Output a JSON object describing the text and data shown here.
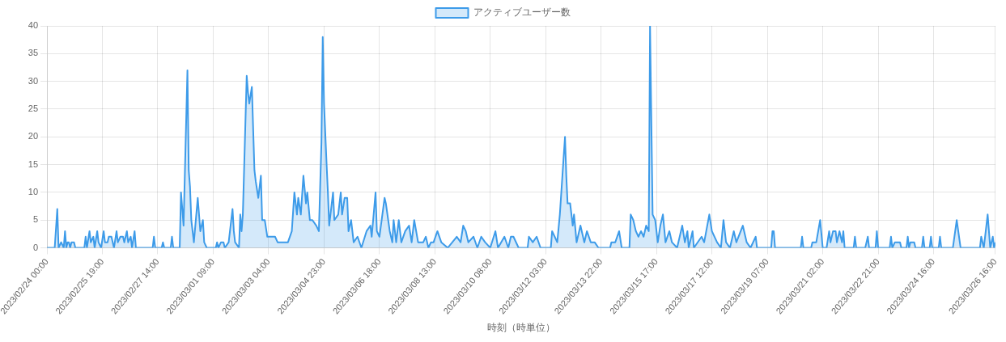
{
  "chart_data": {
    "type": "area",
    "xlabel": "時刻（時単位）",
    "legend": "top",
    "grid": true,
    "marker": "none",
    "line_style": "solid",
    "ylim": [
      0,
      40
    ],
    "yticks": [
      0,
      5,
      10,
      15,
      20,
      25,
      30,
      35,
      40
    ],
    "xlim": [
      "2023-02-24T00:00",
      "2023-03-26T16:00"
    ],
    "xticks": [
      {
        "value": "2023-02-24T00:00",
        "label": "2023/02/24 00:00"
      },
      {
        "value": "2023-02-25T19:00",
        "label": "2023/02/25 19:00"
      },
      {
        "value": "2023-02-27T14:00",
        "label": "2023/02/27 14:00"
      },
      {
        "value": "2023-03-01T09:00",
        "label": "2023/03/01 09:00"
      },
      {
        "value": "2023-03-03T04:00",
        "label": "2023/03/03 04:00"
      },
      {
        "value": "2023-03-04T23:00",
        "label": "2023/03/04 23:00"
      },
      {
        "value": "2023-03-06T18:00",
        "label": "2023/03/06 18:00"
      },
      {
        "value": "2023-03-08T13:00",
        "label": "2023/03/08 13:00"
      },
      {
        "value": "2023-03-10T08:00",
        "label": "2023/03/10 08:00"
      },
      {
        "value": "2023-03-12T03:00",
        "label": "2023/03/12 03:00"
      },
      {
        "value": "2023-03-13T22:00",
        "label": "2023/03/13 22:00"
      },
      {
        "value": "2023-03-15T17:00",
        "label": "2023/03/15 17:00"
      },
      {
        "value": "2023-03-17T12:00",
        "label": "2023/03/17 12:00"
      },
      {
        "value": "2023-03-19T07:00",
        "label": "2023/03/19 07:00"
      },
      {
        "value": "2023-03-21T02:00",
        "label": "2023/03/21 02:00"
      },
      {
        "value": "2023-03-22T21:00",
        "label": "2023/03/22 21:00"
      },
      {
        "value": "2023-03-24T16:00",
        "label": "2023/03/24 16:00"
      },
      {
        "value": "2023-03-26T16:00",
        "label": "2023/03/26 16:00"
      }
    ],
    "series": [
      {
        "name": "アクティブユーザー数",
        "color": "#3d9be9",
        "x": [
          "2023-02-24T00:00",
          "2023-02-24T06:00",
          "2023-02-24T08:00",
          "2023-02-24T09:00",
          "2023-02-24T11:00",
          "2023-02-24T13:00",
          "2023-02-24T14:00",
          "2023-02-24T15:00",
          "2023-02-24T16:00",
          "2023-02-24T17:00",
          "2023-02-24T18:00",
          "2023-02-24T19:00",
          "2023-02-24T21:00",
          "2023-02-24T22:00",
          "2023-02-25T05:00",
          "2023-02-25T06:00",
          "2023-02-25T07:00",
          "2023-02-25T09:00",
          "2023-02-25T10:00",
          "2023-02-25T12:00",
          "2023-02-25T13:00",
          "2023-02-25T15:00",
          "2023-02-25T16:00",
          "2023-02-25T18:00",
          "2023-02-25T20:00",
          "2023-02-25T21:00",
          "2023-02-25T23:00",
          "2023-02-26T00:00",
          "2023-02-26T02:00",
          "2023-02-26T04:00",
          "2023-02-26T06:00",
          "2023-02-26T07:00",
          "2023-02-26T09:00",
          "2023-02-26T11:00",
          "2023-02-26T12:00",
          "2023-02-26T14:00",
          "2023-02-26T15:00",
          "2023-02-26T17:00",
          "2023-02-26T18:00",
          "2023-02-26T20:00",
          "2023-02-26T21:00",
          "2023-02-26T23:00",
          "2023-02-27T10:00",
          "2023-02-27T11:00",
          "2023-02-27T12:00",
          "2023-02-27T17:00",
          "2023-02-27T18:00",
          "2023-02-27T19:00",
          "2023-02-28T00:00",
          "2023-02-28T01:00",
          "2023-02-28T02:00",
          "2023-02-28T07:00",
          "2023-02-28T08:00",
          "2023-02-28T10:00",
          "2023-02-28T13:00",
          "2023-02-28T14:00",
          "2023-02-28T15:00",
          "2023-02-28T16:00",
          "2023-02-28T17:00",
          "2023-02-28T18:00",
          "2023-02-28T21:00",
          "2023-02-28T23:00",
          "2023-03-01T01:00",
          "2023-03-01T02:00",
          "2023-03-01T04:00",
          "2023-03-01T11:00",
          "2023-03-01T12:00",
          "2023-03-01T13:00",
          "2023-03-01T15:00",
          "2023-03-01T17:00",
          "2023-03-01T18:00",
          "2023-03-01T21:00",
          "2023-03-01T22:00",
          "2023-03-02T00:00",
          "2023-03-02T01:00",
          "2023-03-02T02:00",
          "2023-03-02T05:00",
          "2023-03-02T06:00",
          "2023-03-02T07:00",
          "2023-03-02T08:00",
          "2023-03-02T11:00",
          "2023-03-02T12:00",
          "2023-03-02T13:00",
          "2023-03-02T15:00",
          "2023-03-02T17:00",
          "2023-03-02T18:00",
          "2023-03-02T20:00",
          "2023-03-02T22:00",
          "2023-03-02T23:00",
          "2023-03-03T01:00",
          "2023-03-03T03:00",
          "2023-03-03T09:00",
          "2023-03-03T11:00",
          "2023-03-03T17:00",
          "2023-03-03T19:00",
          "2023-03-03T22:00",
          "2023-03-04T00:00",
          "2023-03-04T02:00",
          "2023-03-04T03:00",
          "2023-03-04T05:00",
          "2023-03-04T07:00",
          "2023-03-04T09:00",
          "2023-03-04T10:00",
          "2023-03-04T12:00",
          "2023-03-04T14:00",
          "2023-03-04T17:00",
          "2023-03-04T19:00",
          "2023-03-04T21:00",
          "2023-03-04T22:00",
          "2023-03-04T23:00",
          "2023-03-05T01:00",
          "2023-03-05T02:00",
          "2023-03-05T03:00",
          "2023-03-05T06:00",
          "2023-03-05T07:00",
          "2023-03-05T10:00",
          "2023-03-05T12:00",
          "2023-03-05T13:00",
          "2023-03-05T15:00",
          "2023-03-05T17:00",
          "2023-03-05T18:00",
          "2023-03-05T20:00",
          "2023-03-05T22:00",
          "2023-03-06T01:00",
          "2023-03-06T04:00",
          "2023-03-06T08:00",
          "2023-03-06T11:00",
          "2023-03-06T12:00",
          "2023-03-06T15:00",
          "2023-03-06T16:00",
          "2023-03-06T18:00",
          "2023-03-06T22:00",
          "2023-03-06T23:00",
          "2023-03-07T02:00",
          "2023-03-07T04:00",
          "2023-03-07T05:00",
          "2023-03-07T07:00",
          "2023-03-07T09:00",
          "2023-03-07T11:00",
          "2023-03-07T14:00",
          "2023-03-07T17:00",
          "2023-03-07T19:00",
          "2023-03-07T21:00",
          "2023-03-08T00:00",
          "2023-03-08T04:00",
          "2023-03-08T06:00",
          "2023-03-08T08:00",
          "2023-03-08T10:00",
          "2023-03-08T12:00",
          "2023-03-08T15:00",
          "2023-03-08T18:00",
          "2023-03-08T23:00",
          "2023-03-09T06:00",
          "2023-03-09T09:00",
          "2023-03-09T11:00",
          "2023-03-09T13:00",
          "2023-03-09T15:00",
          "2023-03-09T19:00",
          "2023-03-09T22:00",
          "2023-03-10T01:00",
          "2023-03-10T04:00",
          "2023-03-10T08:00",
          "2023-03-10T12:00",
          "2023-03-10T14:00",
          "2023-03-10T19:00",
          "2023-03-10T22:00",
          "2023-03-11T00:00",
          "2023-03-11T02:00",
          "2023-03-11T06:00",
          "2023-03-11T13:00",
          "2023-03-11T14:00",
          "2023-03-11T17:00",
          "2023-03-11T20:00",
          "2023-03-11T23:00",
          "2023-03-12T07:00",
          "2023-03-12T08:00",
          "2023-03-12T10:00",
          "2023-03-12T12:00",
          "2023-03-12T14:00",
          "2023-03-12T16:00",
          "2023-03-12T18:00",
          "2023-03-12T19:00",
          "2023-03-12T20:00",
          "2023-03-12T22:00",
          "2023-03-13T00:00",
          "2023-03-13T01:00",
          "2023-03-13T03:00",
          "2023-03-13T06:00",
          "2023-03-13T09:00",
          "2023-03-13T11:00",
          "2023-03-13T14:00",
          "2023-03-13T17:00",
          "2023-03-13T20:00",
          "2023-03-14T05:00",
          "2023-03-14T06:00",
          "2023-03-14T09:00",
          "2023-03-14T12:00",
          "2023-03-14T14:00",
          "2023-03-14T20:00",
          "2023-03-14T21:00",
          "2023-03-14T23:00",
          "2023-03-15T01:00",
          "2023-03-15T03:00",
          "2023-03-15T05:00",
          "2023-03-15T07:00",
          "2023-03-15T09:00",
          "2023-03-15T11:00",
          "2023-03-15T12:00",
          "2023-03-15T14:00",
          "2023-03-15T16:00",
          "2023-03-15T18:00",
          "2023-03-15T20:00",
          "2023-03-15T22:00",
          "2023-03-16T00:00",
          "2023-03-16T03:00",
          "2023-03-16T05:00",
          "2023-03-16T09:00",
          "2023-03-16T13:00",
          "2023-03-16T15:00",
          "2023-03-16T17:00",
          "2023-03-16T18:00",
          "2023-03-16T21:00",
          "2023-03-16T22:00",
          "2023-03-17T04:00",
          "2023-03-17T06:00",
          "2023-03-17T10:00",
          "2023-03-17T12:00",
          "2023-03-17T16:00",
          "2023-03-17T19:00",
          "2023-03-17T21:00",
          "2023-03-17T23:00",
          "2023-03-18T02:00",
          "2023-03-18T05:00",
          "2023-03-18T07:00",
          "2023-03-18T12:00",
          "2023-03-18T15:00",
          "2023-03-18T18:00",
          "2023-03-18T22:00",
          "2023-03-18T23:00",
          "2023-03-19T10:00",
          "2023-03-19T11:00",
          "2023-03-19T12:00",
          "2023-03-19T13:00",
          "2023-03-20T09:00",
          "2023-03-20T10:00",
          "2023-03-20T11:00",
          "2023-03-20T17:00",
          "2023-03-20T18:00",
          "2023-03-20T21:00",
          "2023-03-21T00:00",
          "2023-03-21T02:00",
          "2023-03-21T05:00",
          "2023-03-21T07:00",
          "2023-03-21T08:00",
          "2023-03-21T10:00",
          "2023-03-21T12:00",
          "2023-03-21T13:00",
          "2023-03-21T15:00",
          "2023-03-21T17:00",
          "2023-03-21T18:00",
          "2023-03-21T19:00",
          "2023-03-22T02:00",
          "2023-03-22T03:00",
          "2023-03-22T04:00",
          "2023-03-22T11:00",
          "2023-03-22T13:00",
          "2023-03-22T14:00",
          "2023-03-22T19:00",
          "2023-03-22T20:00",
          "2023-03-22T21:00",
          "2023-03-23T06:00",
          "2023-03-23T07:00",
          "2023-03-23T08:00",
          "2023-03-23T10:00",
          "2023-03-23T14:00",
          "2023-03-23T15:00",
          "2023-03-23T19:00",
          "2023-03-23T20:00",
          "2023-03-23T21:00",
          "2023-03-23T22:00",
          "2023-03-24T01:00",
          "2023-03-24T02:00",
          "2023-03-24T07:00",
          "2023-03-24T08:00",
          "2023-03-24T09:00",
          "2023-03-24T13:00",
          "2023-03-24T14:00",
          "2023-03-24T15:00",
          "2023-03-24T20:00",
          "2023-03-24T21:00",
          "2023-03-24T22:00",
          "2023-03-25T07:00",
          "2023-03-25T10:00",
          "2023-03-25T13:00",
          "2023-03-26T04:00",
          "2023-03-26T05:00",
          "2023-03-26T07:00",
          "2023-03-26T10:00",
          "2023-03-26T12:00",
          "2023-03-26T14:00",
          "2023-03-26T15:00",
          "2023-03-26T16:00"
        ],
        "values": [
          0,
          0,
          7,
          0,
          1,
          0,
          3,
          0,
          1,
          1,
          0,
          1,
          1,
          0,
          0,
          2,
          0,
          3,
          1,
          2,
          0,
          3,
          1,
          0,
          3,
          1,
          1,
          2,
          2,
          0,
          3,
          1,
          2,
          2,
          1,
          3,
          1,
          2,
          0,
          3,
          0,
          0,
          0,
          2,
          0,
          0,
          1,
          0,
          0,
          2,
          0,
          0,
          10,
          4,
          32,
          14,
          11,
          5,
          3,
          1,
          9,
          3,
          5,
          1,
          0,
          0,
          1,
          0,
          1,
          1,
          0,
          1,
          3,
          7,
          3,
          1,
          0,
          6,
          3,
          6,
          31,
          28,
          26,
          29,
          14,
          12,
          9,
          13,
          5,
          5,
          2,
          2,
          1,
          1,
          1,
          3,
          10,
          6,
          9,
          6,
          13,
          8,
          10,
          5,
          5,
          4,
          3,
          19,
          38,
          26,
          15,
          10,
          4,
          10,
          5,
          6,
          10,
          6,
          9,
          9,
          3,
          5,
          1,
          2,
          0,
          3,
          4,
          2,
          10,
          3,
          2,
          9,
          8,
          3,
          1,
          5,
          1,
          5,
          1,
          3,
          4,
          1,
          5,
          1,
          1,
          2,
          0,
          1,
          1,
          3,
          1,
          0,
          2,
          1,
          4,
          3,
          1,
          2,
          0,
          2,
          1,
          0,
          3,
          0,
          2,
          0,
          2,
          2,
          0,
          0,
          2,
          1,
          2,
          0,
          0,
          3,
          2,
          1,
          6,
          13,
          20,
          13,
          8,
          8,
          4,
          6,
          1,
          4,
          1,
          3,
          1,
          1,
          0,
          0,
          1,
          1,
          3,
          0,
          0,
          6,
          5,
          3,
          2,
          3,
          2,
          4,
          3,
          40,
          6,
          5,
          1,
          4,
          6,
          1,
          3,
          1,
          0,
          4,
          1,
          3,
          0,
          3,
          0,
          2,
          1,
          6,
          3,
          1,
          0,
          5,
          1,
          0,
          3,
          1,
          4,
          1,
          0,
          2,
          0,
          0,
          3,
          3,
          0,
          0,
          2,
          0,
          0,
          1,
          1,
          5,
          0,
          0,
          3,
          1,
          3,
          3,
          1,
          3,
          1,
          3,
          0,
          0,
          2,
          0,
          0,
          2,
          0,
          0,
          3,
          0,
          0,
          2,
          0,
          1,
          1,
          0,
          0,
          2,
          0,
          1,
          1,
          0,
          0,
          2,
          0,
          0,
          2,
          0,
          0,
          2,
          0,
          0,
          5,
          0,
          0,
          2,
          0,
          6,
          0,
          2,
          0,
          1
        ]
      }
    ]
  }
}
